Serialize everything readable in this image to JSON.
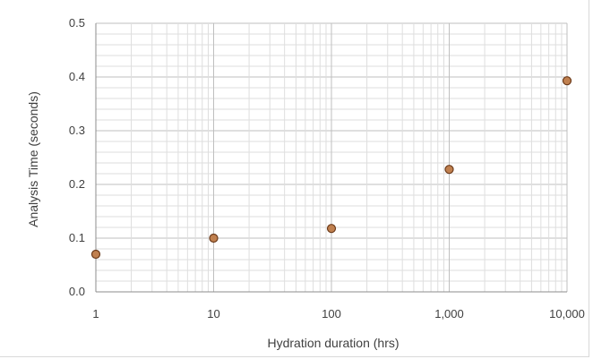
{
  "chart_data": {
    "type": "scatter",
    "title": "",
    "xlabel": "Hydration duration (hrs)",
    "ylabel": "Analysis Time (seconds)",
    "x_scale": "log",
    "xlim": [
      1,
      10000
    ],
    "ylim": [
      0,
      0.5
    ],
    "x_ticks": [
      1,
      10,
      100,
      1000,
      10000
    ],
    "x_tick_labels": [
      "1",
      "10",
      "100",
      "1,000",
      "10,000"
    ],
    "y_ticks": [
      0,
      0.1,
      0.2,
      0.3,
      0.4,
      0.5
    ],
    "y_tick_labels": [
      "0.0",
      "0.1",
      "0.2",
      "0.3",
      "0.4",
      "0.5"
    ],
    "grid": true,
    "legend": "none",
    "marker_fill": "#c0804f",
    "marker_edge": "#6b3a1a",
    "points": [
      {
        "x": 1,
        "y": 0.07
      },
      {
        "x": 10,
        "y": 0.1
      },
      {
        "x": 100,
        "y": 0.118
      },
      {
        "x": 1000,
        "y": 0.228
      },
      {
        "x": 10000,
        "y": 0.393
      }
    ]
  }
}
